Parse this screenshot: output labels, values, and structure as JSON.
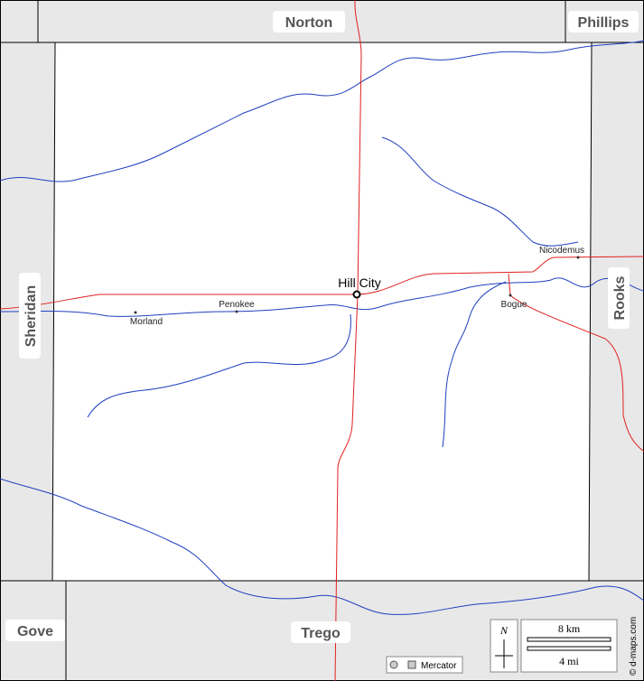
{
  "neighbors": [
    "Norton",
    "Phillips",
    "Sheridan",
    "Rooks",
    "Gove",
    "Trego"
  ],
  "seat": "Hill City",
  "towns": [
    "Nicodemus",
    "Penokee",
    "Morland",
    "Bogue"
  ],
  "scale": {
    "km": "8 km",
    "mi": "4 mi"
  },
  "north": "N",
  "projection": "Mercator",
  "credit": "© d-maps.com"
}
